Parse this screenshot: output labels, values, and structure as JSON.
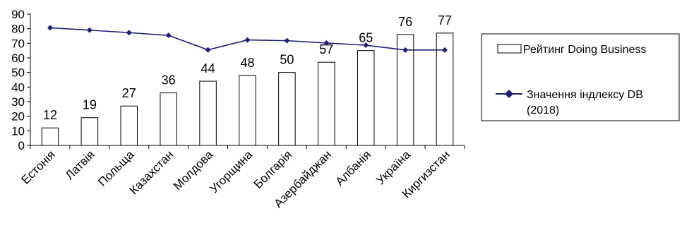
{
  "chart_data": {
    "type": "bar+line",
    "categories": [
      "Естонія",
      "Латвія",
      "Польща",
      "Казахстан",
      "Молдова",
      "Угорщина",
      "Болгарія",
      "Азербайджан",
      "Албанія",
      "Україна",
      "Киргизстан"
    ],
    "series": [
      {
        "name": "Рейтинг Doing Business",
        "type": "bar",
        "values": [
          12,
          19,
          27,
          36,
          44,
          48,
          50,
          57,
          65,
          76,
          77
        ],
        "color": "#ffffff",
        "stroke": "#000000"
      },
      {
        "name": "Значення індлексу DB (2018)",
        "type": "line",
        "values": [
          80.6,
          79.0,
          77.3,
          75.4,
          65.5,
          72.3,
          71.8,
          70.2,
          68.7,
          65.4,
          65.4
        ],
        "color": "#1f1f78"
      }
    ],
    "ylim": [
      0,
      90
    ],
    "yticks": [
      0,
      10,
      20,
      30,
      40,
      50,
      60,
      70,
      80,
      90
    ],
    "grid": false,
    "legend_position": "right"
  },
  "legend": {
    "bar_label": "Рейтинг Doing Business",
    "line_label_1": "Значення індлексу DB",
    "line_label_2": "(2018)"
  }
}
